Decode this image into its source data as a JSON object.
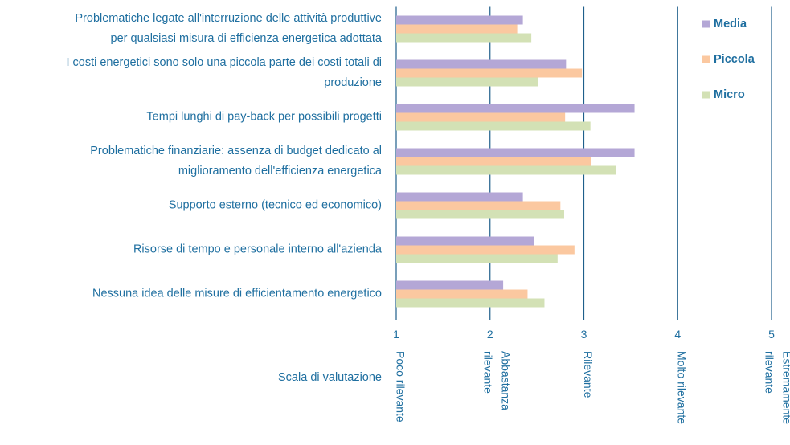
{
  "chart_data": {
    "type": "bar",
    "orientation": "horizontal",
    "categories": [
      "Problematiche legate all'interruzione delle attività produttive\nper qualsiasi misura di efficienza energetica adottata",
      "I costi energetici sono solo una piccola parte dei costi totali di\nproduzione",
      "Tempi lunghi di pay-back per possibili progetti",
      "Problematiche finanziarie: assenza di budget dedicato al\nmiglioramento dell'efficienza energetica",
      "Supporto esterno (tecnico ed economico)",
      "Risorse di tempo e personale interno all'azienda",
      "Nessuna idea delle misure di efficientamento energetico"
    ],
    "series": [
      {
        "name": "Media",
        "color": "#b4a7d6",
        "values": [
          2.35,
          2.81,
          3.54,
          3.54,
          2.35,
          2.47,
          2.14
        ]
      },
      {
        "name": "Piccola",
        "color": "#fbc8a0",
        "values": [
          2.29,
          2.98,
          2.8,
          3.08,
          2.75,
          2.9,
          2.4
        ]
      },
      {
        "name": "Micro",
        "color": "#d3e1b5",
        "values": [
          2.44,
          2.51,
          3.07,
          3.34,
          2.79,
          2.72,
          2.58
        ]
      }
    ],
    "xlim": [
      1,
      5
    ],
    "xticks": [
      1,
      2,
      3,
      4,
      5
    ],
    "scale_labels": [
      "Poco rilevante",
      "Abbastanza\nrilevante",
      "Rilevante",
      "Molto rilevante",
      "Estremamente\nrilevante"
    ],
    "xlabel": "Scala di valutazione",
    "grid": true,
    "legend": "top-right"
  }
}
